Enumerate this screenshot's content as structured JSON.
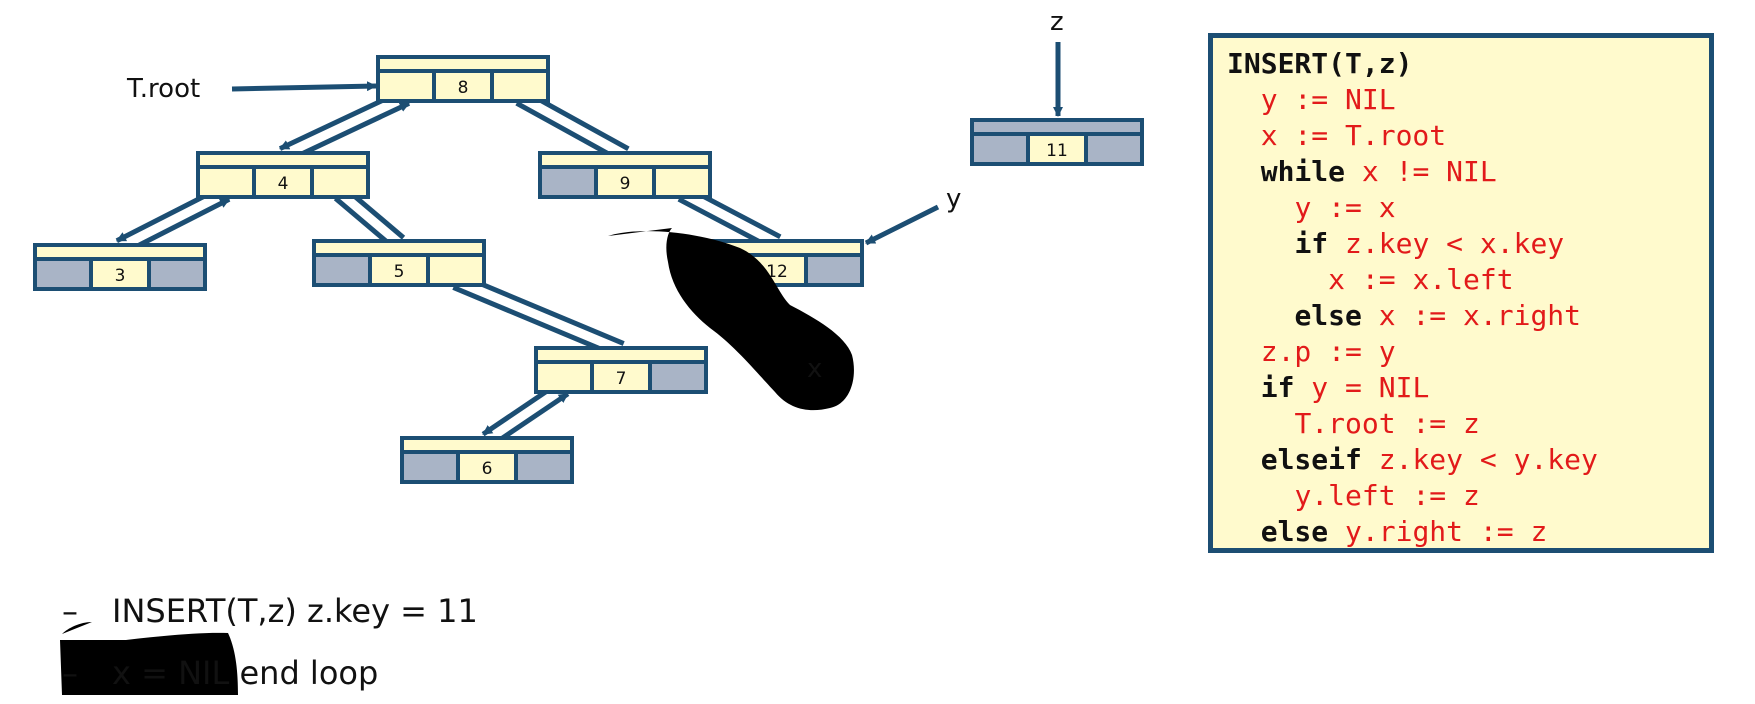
{
  "diagram": {
    "labels": {
      "root": "T.root",
      "z": "z",
      "y": "y",
      "x": "x"
    },
    "nodes": [
      {
        "id": "n8",
        "key": "8",
        "left": "ptr",
        "right": "ptr"
      },
      {
        "id": "n4",
        "key": "4",
        "left": "ptr",
        "right": "ptr"
      },
      {
        "id": "n9",
        "key": "9",
        "left": "nil",
        "right": "ptr"
      },
      {
        "id": "n3",
        "key": "3",
        "left": "nil",
        "right": "nil"
      },
      {
        "id": "n5",
        "key": "5",
        "left": "nil",
        "right": "ptr"
      },
      {
        "id": "n12",
        "key": "12",
        "left": "nil",
        "right": "nil"
      },
      {
        "id": "n7",
        "key": "7",
        "left": "ptr",
        "right": "nil"
      },
      {
        "id": "n6",
        "key": "6",
        "left": "nil",
        "right": "nil"
      },
      {
        "id": "n11",
        "key": "11",
        "left": "nil",
        "right": "nil",
        "parent": "nil"
      }
    ],
    "colors": {
      "node_fill": "#fffacd",
      "nil_fill": "#a9b4c6",
      "stroke": "#1c4e73",
      "annotation": "#e51b1b"
    }
  },
  "code": {
    "lines": [
      [
        {
          "t": "INSERT(T,z)",
          "s": "kw"
        }
      ],
      [
        {
          "t": "  "
        },
        {
          "t": "y := NIL",
          "s": "rd"
        }
      ],
      [
        {
          "t": "  "
        },
        {
          "t": "x := T.root",
          "s": "rd"
        }
      ],
      [
        {
          "t": "  "
        },
        {
          "t": "while",
          "s": "kw"
        },
        {
          "t": " "
        },
        {
          "t": "x != NIL",
          "s": "rd"
        }
      ],
      [
        {
          "t": "    "
        },
        {
          "t": "y := x",
          "s": "rd"
        }
      ],
      [
        {
          "t": "    "
        },
        {
          "t": "if",
          "s": "kw"
        },
        {
          "t": " "
        },
        {
          "t": "z.key < x.key",
          "s": "rd"
        }
      ],
      [
        {
          "t": "      "
        },
        {
          "t": "x := x.left",
          "s": "rd"
        }
      ],
      [
        {
          "t": "    "
        },
        {
          "t": "else",
          "s": "kw"
        },
        {
          "t": " "
        },
        {
          "t": "x := x.right",
          "s": "rd"
        }
      ],
      [
        {
          "t": "  "
        },
        {
          "t": "z.p := y",
          "s": "rd"
        }
      ],
      [
        {
          "t": "  "
        },
        {
          "t": "if",
          "s": "kw"
        },
        {
          "t": " "
        },
        {
          "t": "y = NIL",
          "s": "rd"
        }
      ],
      [
        {
          "t": "    "
        },
        {
          "t": "T.root := z",
          "s": "rd"
        }
      ],
      [
        {
          "t": "  "
        },
        {
          "t": "elseif",
          "s": "kw"
        },
        {
          "t": " "
        },
        {
          "t": "z.key < y.key",
          "s": "rd"
        }
      ],
      [
        {
          "t": "    "
        },
        {
          "t": "y.left := z",
          "s": "rd"
        }
      ],
      [
        {
          "t": "  "
        },
        {
          "t": "else",
          "s": "kw"
        },
        {
          "t": " "
        },
        {
          "t": "y.right := z",
          "s": "rd"
        }
      ]
    ]
  },
  "notes": [
    {
      "dash": "–",
      "text": "INSERT(T,z) z.key = 11"
    },
    {
      "dash": "–",
      "text": "x = NIL end loop"
    }
  ]
}
